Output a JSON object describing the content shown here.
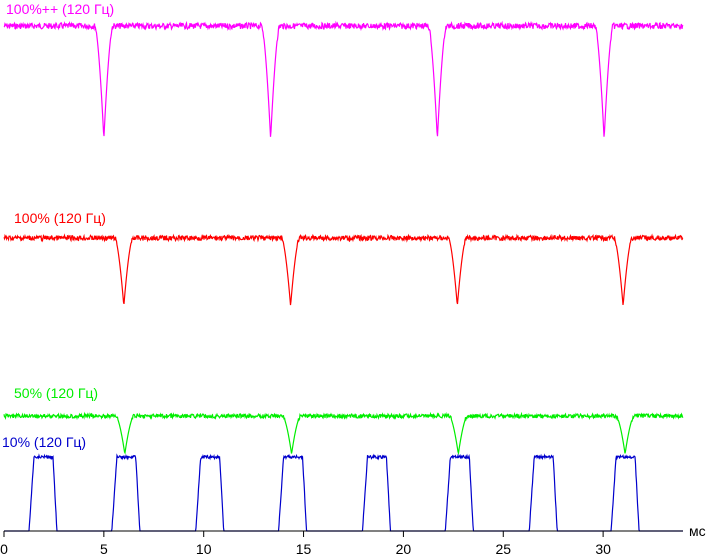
{
  "chart_data": {
    "type": "line",
    "x_unit": "мс",
    "xlim": [
      0,
      34
    ],
    "x_ticks": [
      0,
      5,
      10,
      15,
      20,
      25,
      30
    ],
    "x_tick_labels": [
      "0",
      "5",
      "10",
      "15",
      "20",
      "25",
      "30"
    ],
    "grid": false,
    "series": [
      {
        "name": "100%++ (120 Гц)",
        "color": "#ff00ff",
        "pattern": "periodic dips",
        "period_ms": 8.33,
        "dip_centers_ms": [
          5.0,
          13.35,
          21.7,
          30.05
        ],
        "baseline_level": 1.0,
        "dip_level": 0.0
      },
      {
        "name": "100% (120 Гц)",
        "color": "#ff0000",
        "pattern": "periodic dips",
        "period_ms": 8.33,
        "dip_centers_ms": [
          6.0,
          14.35,
          22.7,
          31.0
        ],
        "baseline_level": 1.0,
        "dip_level": 0.0
      },
      {
        "name": "50% (120 Гц)",
        "color": "#00ee00",
        "pattern": "periodic dips",
        "period_ms": 8.33,
        "dip_centers_ms": [
          6.05,
          14.4,
          22.75,
          31.1
        ],
        "baseline_level": 1.0,
        "dip_level": 0.0
      },
      {
        "name": "10% (120 Гц)",
        "color": "#0000cc",
        "pattern": "periodic pulses",
        "period_ms": 4.17,
        "pulse_starts_ms": [
          1.25,
          5.4,
          9.6,
          13.75,
          17.95,
          22.1,
          26.3,
          30.4
        ],
        "pulse_width_ms": 1.2,
        "baseline_level": 0.0,
        "pulse_level": 1.0
      }
    ]
  }
}
